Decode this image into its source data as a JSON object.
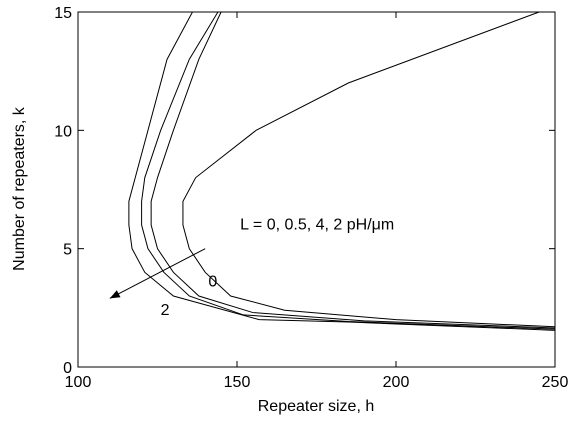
{
  "chart_data": {
    "type": "line",
    "title": "",
    "xlabel": "Repeater size, h",
    "ylabel": "Number of repeaters, k",
    "xlim": [
      100,
      250
    ],
    "ylim": [
      0,
      15
    ],
    "xticks": [
      100,
      150,
      200,
      250
    ],
    "yticks": [
      0,
      5,
      10,
      15
    ],
    "grid": false,
    "legend": "none",
    "series": [
      {
        "x": [
          245,
          185,
          156,
          137,
          133,
          133,
          135,
          140,
          148,
          165,
          200,
          250
        ],
        "y": [
          15,
          12,
          10,
          8,
          7,
          6,
          5,
          4,
          3,
          2.4,
          2,
          1.7
        ]
      },
      {
        "x": [
          145,
          138,
          130,
          125,
          123,
          123,
          125,
          130,
          138,
          155,
          190,
          250
        ],
        "y": [
          15,
          13,
          10,
          8,
          7,
          6,
          5,
          4,
          3,
          2.3,
          1.95,
          1.65
        ]
      },
      {
        "x": [
          144,
          135,
          126,
          121,
          120,
          120,
          122,
          127,
          135,
          152,
          185,
          250
        ],
        "y": [
          15,
          13,
          10,
          8,
          7,
          6,
          5,
          4,
          3,
          2.2,
          1.92,
          1.6
        ]
      },
      {
        "x": [
          136,
          128,
          122,
          118,
          116,
          116,
          117,
          121,
          130,
          157,
          185,
          250
        ],
        "y": [
          15,
          13,
          10,
          8,
          7,
          6,
          5,
          4,
          3,
          2,
          1.9,
          1.55
        ]
      }
    ],
    "annotations": [
      {
        "text": "L = 0, 0.5, 4, 2 pH/μm",
        "x": 151,
        "y": 5.8
      },
      {
        "text": "0",
        "x": 141,
        "y": 3.4
      },
      {
        "text": "2",
        "x": 126,
        "y": 2.2
      }
    ],
    "arrow": {
      "from": [
        140,
        5.0
      ],
      "to": [
        110,
        2.9
      ]
    }
  }
}
